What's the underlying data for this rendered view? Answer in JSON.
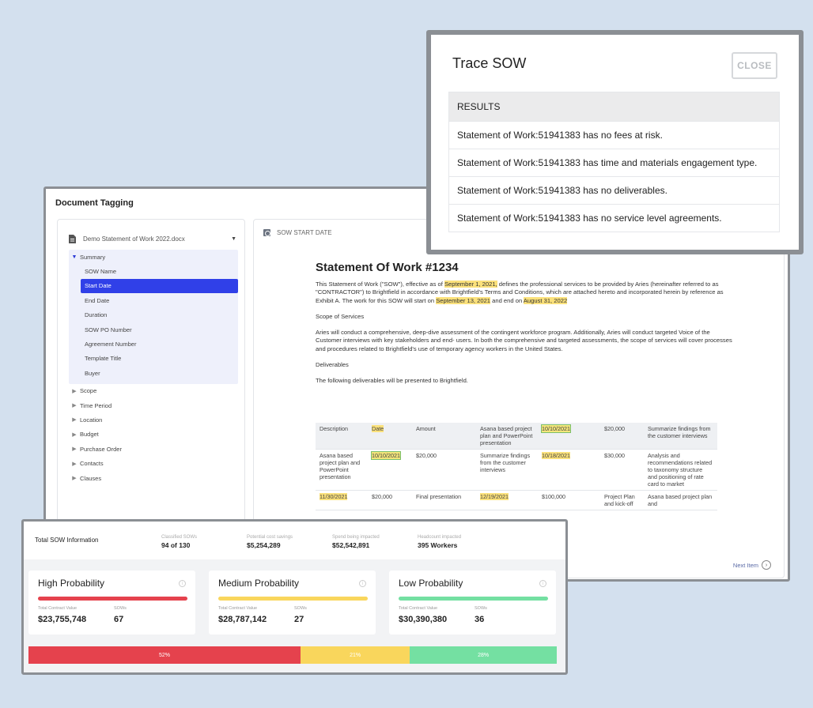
{
  "colors": {
    "accent": "#3040e8",
    "high": "#e5424d",
    "medium": "#f9d65c",
    "low": "#74e0a2"
  },
  "doc_window": {
    "title": "Document Tagging",
    "file_select": {
      "value": "Demo Statement of Work 2022.docx",
      "icon": "document-icon"
    },
    "tree": {
      "summary": {
        "label": "Summary",
        "children": [
          "SOW Name",
          "Start Date",
          "End Date",
          "Duration",
          "SOW PO Number",
          "Agreement Number",
          "Template Title",
          "Buyer"
        ],
        "active": "Start Date"
      },
      "collapsed": [
        "Scope",
        "Time Period",
        "Location",
        "Budget",
        "Purchase Order",
        "Contacts",
        "Clauses"
      ]
    },
    "field_label": "SOW START DATE",
    "document": {
      "heading": "Statement Of Work #1234",
      "p1_a": "This Statement of Work (\"SOW\"), effective as of ",
      "p1_date1": "September 1, 2021,",
      "p1_b": " defines the professional services to be provided by Aries (hereinafter referred to as \"CONTRACTOR\") to Brightfield in accordance with Brightfield's Terms and Conditions, which are attached hereto and incorporated herein by reference as Exhibit A. The work for this SOW will start on ",
      "p1_date2": "September 13, 2021",
      "p1_c": " and end on ",
      "p1_date3": "August 31, 2022",
      "scope_heading": "Scope of Services",
      "scope_text": "Aries will conduct a comprehensive, deep-dive assessment of the contingent workforce program.  Additionally, Aries will conduct targeted Voice of the Customer interviews with key stakeholders and end- users.  In both the comprehensive and targeted assessments, the scope of services will cover processes and procedures related to Brightfield's use of temporary agency workers in the United States.",
      "deliverables_heading": "Deliverables",
      "deliverables_intro": "The following deliverables will be presented to Brightfield."
    },
    "table": {
      "rows": [
        [
          "Description",
          "Date",
          "Amount",
          "Asana based project plan and PowerPoint presentation",
          "10/10/2021",
          "$20,000",
          "Summarize findings from the customer interviews"
        ],
        [
          "Asana based project plan and PowerPoint presentation",
          "10/10/2021",
          "$20,000",
          "Summarize findings from the customer interviews",
          "10/18/2021",
          "$30,000",
          "Analysis and recommendations related to taxonomy structure and positioning of rate card to market"
        ],
        [
          "11/30/2021",
          "$20,000",
          "Final presentation",
          "12/19/2021",
          "$100,000",
          "Project Plan and kick-off",
          "Asana based project plan and"
        ]
      ]
    },
    "next_item": "Next Item"
  },
  "trace_modal": {
    "title": "Trace SOW",
    "close_label": "CLOSE",
    "results_header": "RESULTS",
    "results": [
      "Statement of Work:51941383 has no fees at risk.",
      "Statement of Work:51941383 has time and materials engagement type.",
      "Statement of Work:51941383 has no deliverables.",
      "Statement of Work:51941383 has no service level agreements."
    ]
  },
  "sow_info": {
    "title": "Total SOW Information",
    "stats": [
      {
        "label": "Classified SOWs",
        "value": "94 of 130"
      },
      {
        "label": "Potential cost savings",
        "value": "$5,254,289"
      },
      {
        "label": "Spend being impacted",
        "value": "$52,542,891"
      },
      {
        "label": "Headcount impacted",
        "value": "395 Workers"
      }
    ],
    "cards": [
      {
        "title": "High Probability",
        "tcv_label": "Total Contract Value",
        "tcv": "$23,755,748",
        "sows_label": "SOWs",
        "sows": "67"
      },
      {
        "title": "Medium Probability",
        "tcv_label": "Total Contract Value",
        "tcv": "$28,787,142",
        "sows_label": "SOWs",
        "sows": "27"
      },
      {
        "title": "Low Probability",
        "tcv_label": "Total Contract Value",
        "tcv": "$30,390,380",
        "sows_label": "SOWs",
        "sows": "36"
      }
    ],
    "distribution": [
      {
        "label": "52%",
        "share": 0.515
      },
      {
        "label": "21%",
        "share": 0.207
      },
      {
        "label": "28%",
        "share": 0.278
      }
    ]
  }
}
